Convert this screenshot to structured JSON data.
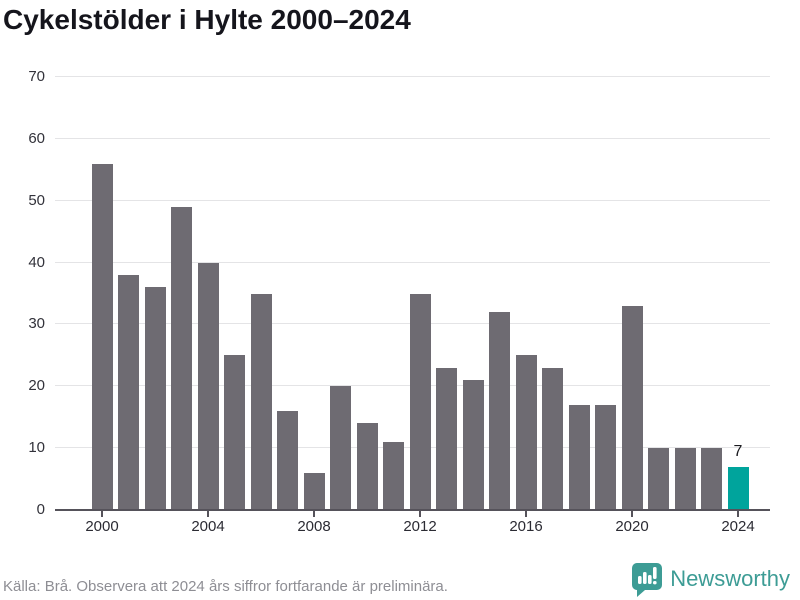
{
  "title": "Cykelstölder i Hylte 2000–2024",
  "footer": {
    "source_note": "Källa: Brå. Observera att 2024 års siffror fortfarande är preliminära.",
    "brand": "Newsworthy"
  },
  "colors": {
    "bar": "#6e6b72",
    "highlight": "#00a49c",
    "brand_teal": "#3d9c95",
    "gridline": "#e4e4e6",
    "axis_line": "#55525a"
  },
  "chart_data": {
    "type": "bar",
    "title": "Cykelstölder i Hylte 2000–2024",
    "categories": [
      2000,
      2001,
      2002,
      2003,
      2004,
      2005,
      2006,
      2007,
      2008,
      2009,
      2010,
      2011,
      2012,
      2013,
      2014,
      2015,
      2016,
      2017,
      2018,
      2019,
      2020,
      2021,
      2022,
      2023,
      2024
    ],
    "values": [
      56,
      38,
      36,
      49,
      40,
      25,
      35,
      16,
      6,
      20,
      14,
      11,
      35,
      23,
      21,
      32,
      25,
      23,
      17,
      17,
      33,
      10,
      10,
      10,
      7
    ],
    "highlight_index": 24,
    "highlight_label": "7",
    "xlabel": "",
    "ylabel": "",
    "ylim": [
      0,
      70
    ],
    "yticks": [
      0,
      10,
      20,
      30,
      40,
      50,
      60,
      70
    ],
    "xticks": [
      2000,
      2004,
      2008,
      2012,
      2016,
      2020,
      2024
    ],
    "grid": true,
    "legend": false
  }
}
